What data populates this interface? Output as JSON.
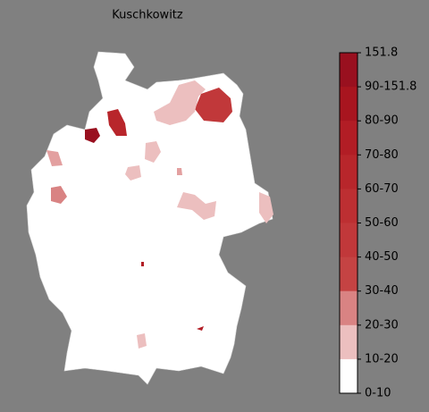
{
  "title": "Kuschkowitz",
  "colorbar": {
    "labels": [
      "151.8",
      "90-151.8",
      "80-90",
      "70-80",
      "60-70",
      "50-60",
      "40-50",
      "30-40",
      "20-30",
      "10-20",
      "0-10"
    ],
    "colors": [
      "#99101f",
      "#a8151f",
      "#b21d25",
      "#b8262b",
      "#bd2f32",
      "#c1383a",
      "#c54343",
      "#d98383",
      "#ecbfbf",
      "#ffffff"
    ]
  }
}
